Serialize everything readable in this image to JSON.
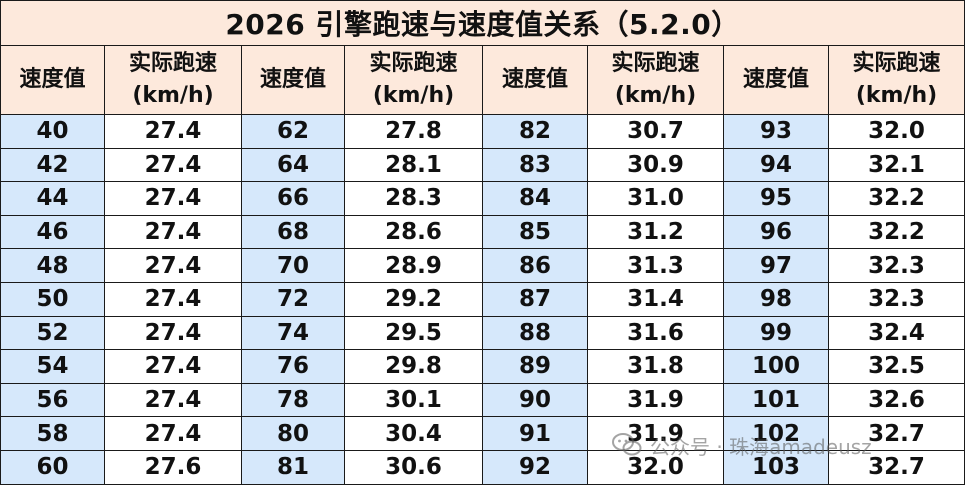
{
  "title": "2026 引擎跑速与速度值关系（5.2.0）",
  "headers": {
    "speed_value": "速度值",
    "actual_speed_line1": "实际跑速",
    "actual_speed_line2": "(km/h)"
  },
  "rows": [
    [
      {
        "s": "40",
        "a": "27.4"
      },
      {
        "s": "62",
        "a": "27.8"
      },
      {
        "s": "82",
        "a": "30.7"
      },
      {
        "s": "93",
        "a": "32.0"
      }
    ],
    [
      {
        "s": "42",
        "a": "27.4"
      },
      {
        "s": "64",
        "a": "28.1"
      },
      {
        "s": "83",
        "a": "30.9"
      },
      {
        "s": "94",
        "a": "32.1"
      }
    ],
    [
      {
        "s": "44",
        "a": "27.4"
      },
      {
        "s": "66",
        "a": "28.3"
      },
      {
        "s": "84",
        "a": "31.0"
      },
      {
        "s": "95",
        "a": "32.2"
      }
    ],
    [
      {
        "s": "46",
        "a": "27.4"
      },
      {
        "s": "68",
        "a": "28.6"
      },
      {
        "s": "85",
        "a": "31.2"
      },
      {
        "s": "96",
        "a": "32.2"
      }
    ],
    [
      {
        "s": "48",
        "a": "27.4"
      },
      {
        "s": "70",
        "a": "28.9"
      },
      {
        "s": "86",
        "a": "31.3"
      },
      {
        "s": "97",
        "a": "32.3"
      }
    ],
    [
      {
        "s": "50",
        "a": "27.4"
      },
      {
        "s": "72",
        "a": "29.2"
      },
      {
        "s": "87",
        "a": "31.4"
      },
      {
        "s": "98",
        "a": "32.3"
      }
    ],
    [
      {
        "s": "52",
        "a": "27.4"
      },
      {
        "s": "74",
        "a": "29.5"
      },
      {
        "s": "88",
        "a": "31.6"
      },
      {
        "s": "99",
        "a": "32.4"
      }
    ],
    [
      {
        "s": "54",
        "a": "27.4"
      },
      {
        "s": "76",
        "a": "29.8"
      },
      {
        "s": "89",
        "a": "31.8"
      },
      {
        "s": "100",
        "a": "32.5"
      }
    ],
    [
      {
        "s": "56",
        "a": "27.4"
      },
      {
        "s": "78",
        "a": "30.1"
      },
      {
        "s": "90",
        "a": "31.9"
      },
      {
        "s": "101",
        "a": "32.6"
      }
    ],
    [
      {
        "s": "58",
        "a": "27.4"
      },
      {
        "s": "80",
        "a": "30.4"
      },
      {
        "s": "91",
        "a": "31.9"
      },
      {
        "s": "102",
        "a": "32.7"
      }
    ],
    [
      {
        "s": "60",
        "a": "27.6"
      },
      {
        "s": "81",
        "a": "30.6"
      },
      {
        "s": "92",
        "a": "32.0"
      },
      {
        "s": "103",
        "a": "32.7"
      }
    ]
  ],
  "watermark": {
    "icon": "wechat-icon",
    "text": "公众号 · 珠海amadeusz"
  },
  "colors": {
    "header_bg": "#fde9dc",
    "speed_col_bg": "#d6e8fb",
    "border": "#1a1a1a"
  }
}
